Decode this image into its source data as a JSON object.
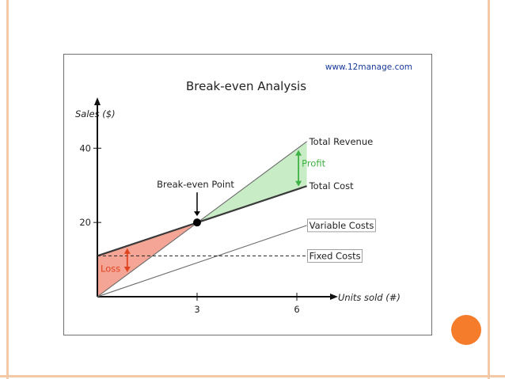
{
  "slide": {
    "accent_color": "#f57c2a",
    "frame_color": "#f4c9a8"
  },
  "chart_data": {
    "type": "line",
    "source_note": "www.12manage.com",
    "title": "Break-even Analysis",
    "xlabel": "Units sold (#)",
    "ylabel": "Sales ($)",
    "xlim": [
      0,
      7
    ],
    "ylim": [
      0,
      52
    ],
    "x_ticks": [
      3,
      6
    ],
    "y_ticks": [
      20,
      40
    ],
    "series": [
      {
        "name": "Total Revenue",
        "x": [
          0,
          6.3
        ],
        "y": [
          0,
          41.8
        ],
        "color": "#6b6b6b"
      },
      {
        "name": "Total Cost",
        "x": [
          0,
          6.3
        ],
        "y": [
          11,
          29.8
        ],
        "color": "#3a3a3a"
      },
      {
        "name": "Variable Costs",
        "x": [
          0,
          6.3
        ],
        "y": [
          0,
          19.2
        ],
        "color": "#6b6b6b"
      },
      {
        "name": "Fixed Costs",
        "x": [
          0,
          6.3
        ],
        "y": [
          11,
          11
        ],
        "color": "#222222",
        "dashed": true
      }
    ],
    "break_even": {
      "label": "Break-even Point",
      "x": 3,
      "y": 20
    },
    "regions": [
      {
        "label": "Loss",
        "fill": "#f4a596",
        "label_color": "#e0431f"
      },
      {
        "label": "Profit",
        "fill": "#c8ecc6",
        "label_color": "#3fb244"
      }
    ],
    "grid": false
  }
}
